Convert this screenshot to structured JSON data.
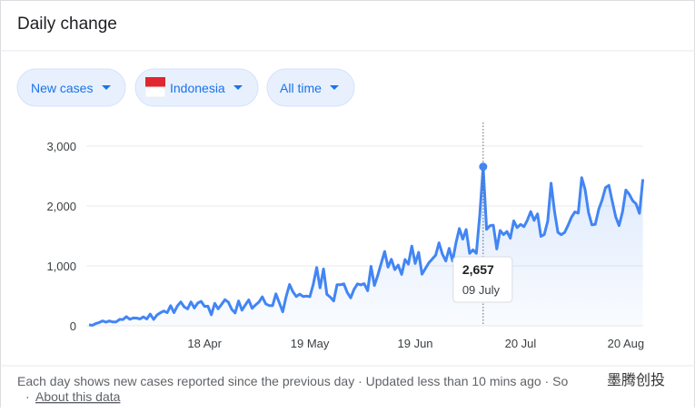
{
  "header": {
    "title": "Daily change"
  },
  "filters": [
    "New cases",
    "Indonesia",
    "All time"
  ],
  "chart_data": {
    "type": "line",
    "color": "#4285f4",
    "categories": [
      null,
      null,
      null,
      null,
      null,
      null,
      null,
      null,
      null,
      null,
      null,
      null,
      null,
      null,
      null,
      null,
      null,
      null,
      null,
      null,
      null,
      null,
      null,
      null,
      null,
      null,
      null,
      null,
      null,
      null,
      null,
      null,
      null,
      null,
      "18 Apr",
      null,
      null,
      null,
      null,
      null,
      null,
      null,
      null,
      null,
      null,
      null,
      null,
      null,
      null,
      null,
      null,
      null,
      null,
      null,
      null,
      null,
      null,
      null,
      null,
      null,
      null,
      null,
      null,
      null,
      null,
      "19 May",
      null,
      null,
      null,
      null,
      null,
      null,
      null,
      null,
      null,
      null,
      null,
      null,
      null,
      null,
      null,
      null,
      null,
      null,
      null,
      null,
      null,
      null,
      null,
      null,
      null,
      null,
      null,
      null,
      null,
      null,
      "19 Jun",
      null,
      null,
      null,
      null,
      null,
      null,
      null,
      null,
      null,
      null,
      null,
      null,
      null,
      null,
      null,
      null,
      null,
      null,
      null,
      null,
      null,
      null,
      null,
      null,
      null,
      null,
      null,
      null,
      null,
      null,
      "20 Jul",
      null,
      null,
      null,
      null,
      null,
      null,
      null,
      null,
      null,
      null,
      null,
      null,
      null,
      null,
      null,
      null,
      null,
      null,
      null,
      null,
      null,
      null,
      null,
      null,
      null,
      null,
      null,
      null,
      null,
      null,
      "20 Aug",
      null,
      null,
      null,
      null,
      null
    ],
    "values": [
      17,
      7,
      38,
      55,
      82,
      60,
      81,
      64,
      65,
      107,
      105,
      153,
      109,
      130,
      129,
      114,
      149,
      113,
      196,
      106,
      181,
      218,
      247,
      218,
      337,
      219,
      330,
      399,
      316,
      282,
      399,
      297,
      380,
      407,
      325,
      327,
      185,
      375,
      283,
      357,
      436,
      396,
      275,
      214,
      415,
      260,
      347,
      433,
      292,
      349,
      395,
      484,
      367,
      338,
      336,
      533,
      387,
      233,
      484,
      689,
      568,
      490,
      529,
      489,
      496,
      486,
      693,
      973,
      634,
      949,
      526,
      479,
      415,
      686,
      687,
      700,
      557,
      467,
      609,
      700,
      684,
      703,
      585,
      993,
      672,
      847,
      1043,
      1241,
      979,
      1111,
      938,
      1014,
      857,
      1106,
      1031,
      1331,
      1041,
      1226,
      862,
      954,
      1051,
      1113,
      1178,
      1385,
      1198,
      1082,
      1293,
      1082,
      1385,
      1624,
      1447,
      1607,
      1209,
      1268,
      1209,
      1853,
      2657,
      1611,
      1671,
      1681,
      1282,
      1591,
      1522,
      1574,
      1462,
      1752,
      1639,
      1693,
      1655,
      1761,
      1906,
      1761,
      1868,
      1492,
      1525,
      1748,
      2381,
      1904,
      1560,
      1519,
      1560,
      1679,
      1815,
      1902,
      1882,
      2473,
      2277,
      1893,
      1687,
      1693,
      1942,
      2098,
      2307,
      2345,
      2081,
      1821,
      1673,
      1902,
      2266,
      2197,
      2090,
      2037,
      1877,
      2447
    ],
    "ylim": [
      0,
      3000
    ],
    "yticks": [
      0,
      {
        "value": 1000,
        "label": "1,000"
      },
      {
        "value": 2000,
        "label": "2,000"
      },
      {
        "value": 3000,
        "label": "3,000"
      }
    ],
    "grid": true,
    "tooltip": {
      "label": "2,657",
      "date": "09 July"
    }
  },
  "footer": {
    "text": "Each day shows new cases reported since the previous day · Updated less than 10 mins ago · So",
    "link": "About this data",
    "watermark": "墨腾创投"
  }
}
